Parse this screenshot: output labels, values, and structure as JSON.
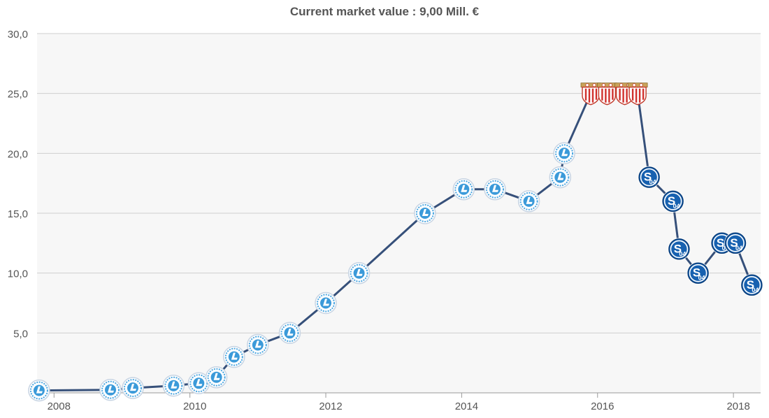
{
  "chart_data": {
    "type": "line",
    "title": "Current market value : 9,00 Mill. €",
    "xlabel": "",
    "ylabel": "",
    "x_ticks": [
      "2008",
      "2010",
      "2012",
      "2014",
      "2016",
      "2018"
    ],
    "y_ticks": [
      "5,0",
      "10,0",
      "15,0",
      "20,0",
      "25,0",
      "30,0"
    ],
    "xlim": [
      2007.75,
      2018.4
    ],
    "ylim": [
      0,
      30
    ],
    "grid": true,
    "legend": "none",
    "line_color": "#36507a",
    "series": [
      {
        "values": [
          {
            "x": 2007.78,
            "y": 0.2,
            "club": "dnipro"
          },
          {
            "x": 2008.83,
            "y": 0.25,
            "club": "dnipro"
          },
          {
            "x": 2009.16,
            "y": 0.4,
            "club": "dnipro"
          },
          {
            "x": 2009.76,
            "y": 0.6,
            "club": "dnipro"
          },
          {
            "x": 2010.13,
            "y": 0.8,
            "club": "dnipro"
          },
          {
            "x": 2010.39,
            "y": 1.3,
            "club": "dnipro"
          },
          {
            "x": 2010.65,
            "y": 3.0,
            "club": "dnipro"
          },
          {
            "x": 2011.0,
            "y": 4.0,
            "club": "dnipro"
          },
          {
            "x": 2011.47,
            "y": 5.0,
            "club": "dnipro"
          },
          {
            "x": 2012.0,
            "y": 7.5,
            "club": "dnipro"
          },
          {
            "x": 2012.49,
            "y": 10.0,
            "club": "dnipro"
          },
          {
            "x": 2013.46,
            "y": 15.0,
            "club": "dnipro"
          },
          {
            "x": 2014.03,
            "y": 17.0,
            "club": "dnipro"
          },
          {
            "x": 2014.49,
            "y": 17.0,
            "club": "dnipro"
          },
          {
            "x": 2014.99,
            "y": 16.0,
            "club": "dnipro"
          },
          {
            "x": 2015.45,
            "y": 18.0,
            "club": "dnipro"
          },
          {
            "x": 2015.51,
            "y": 20.0,
            "club": "dnipro"
          },
          {
            "x": 2015.9,
            "y": 25.0,
            "club": "sevilla"
          },
          {
            "x": 2016.14,
            "y": 25.0,
            "club": "sevilla"
          },
          {
            "x": 2016.4,
            "y": 25.0,
            "club": "sevilla"
          },
          {
            "x": 2016.59,
            "y": 25.0,
            "club": "sevilla"
          },
          {
            "x": 2016.76,
            "y": 18.0,
            "club": "schalke"
          },
          {
            "x": 2017.11,
            "y": 16.0,
            "club": "schalke"
          },
          {
            "x": 2017.2,
            "y": 12.0,
            "club": "schalke"
          },
          {
            "x": 2017.48,
            "y": 10.0,
            "club": "schalke"
          },
          {
            "x": 2017.83,
            "y": 12.5,
            "club": "schalke"
          },
          {
            "x": 2018.03,
            "y": 12.5,
            "club": "schalke"
          },
          {
            "x": 2018.27,
            "y": 9.0,
            "club": "schalke"
          }
        ]
      }
    ]
  }
}
